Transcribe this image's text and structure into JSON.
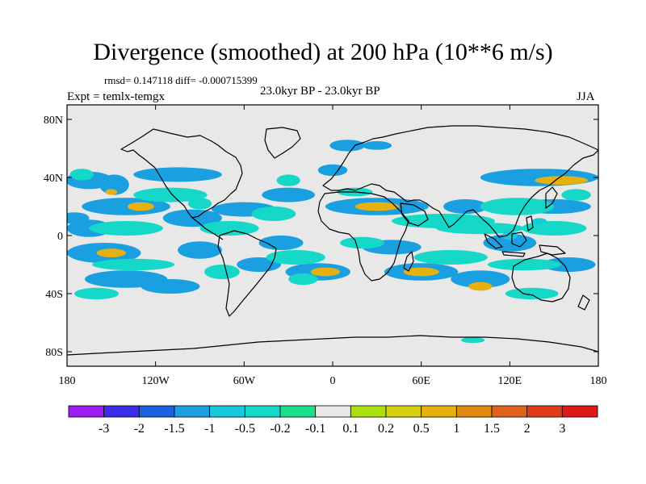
{
  "chart_data": {
    "type": "heatmap",
    "title": "Divergence (smoothed) at 200 hPa (10**6 m/s)",
    "stats_text": "rmsd= 0.147118  diff= -0.000715399",
    "subtitle": "23.0kyr BP - 23.0kyr BP",
    "left_label": "Expt = temlx-temgx",
    "right_label": "JJA",
    "projection": "cylindrical equidistant, coastlines overlaid",
    "xlim": [
      -180,
      180
    ],
    "ylim": [
      -90,
      90
    ],
    "x_ticks": [
      {
        "value": -180,
        "label": "180"
      },
      {
        "value": -120,
        "label": "120W"
      },
      {
        "value": -60,
        "label": "60W"
      },
      {
        "value": 0,
        "label": "0"
      },
      {
        "value": 60,
        "label": "60E"
      },
      {
        "value": 120,
        "label": "120E"
      },
      {
        "value": 180,
        "label": "180"
      }
    ],
    "y_ticks": [
      {
        "value": 80,
        "label": "80N"
      },
      {
        "value": 40,
        "label": "40N"
      },
      {
        "value": 0,
        "label": "0"
      },
      {
        "value": -40,
        "label": "40S"
      },
      {
        "value": -80,
        "label": "80S"
      }
    ],
    "background_color": "#e8e8e8",
    "colorbar": {
      "tick_labels": [
        "-3",
        "-2",
        "-1.5",
        "-1",
        "-0.5",
        "-0.2",
        "-0.1",
        "0.1",
        "0.2",
        "0.5",
        "1",
        "1.5",
        "2",
        "3"
      ],
      "colors": [
        "#9a1ff0",
        "#3a2ee8",
        "#1a60e0",
        "#1aa0e0",
        "#18c8dc",
        "#16d8c8",
        "#1ae08c",
        "#e8e8e8",
        "#a8e010",
        "#d6d010",
        "#e6b010",
        "#e08a12",
        "#e0621a",
        "#e03a1a",
        "#e01818"
      ]
    },
    "features": [
      {
        "lon": -165,
        "lat": 38,
        "level": 3,
        "rx": 16,
        "ry": 6
      },
      {
        "lon": -148,
        "lat": 35,
        "level": 3,
        "rx": 10,
        "ry": 7
      },
      {
        "lon": -150,
        "lat": 30,
        "level": 10,
        "rx": 4,
        "ry": 2
      },
      {
        "lon": -105,
        "lat": 42,
        "level": 3,
        "rx": 30,
        "ry": 5
      },
      {
        "lon": -140,
        "lat": 20,
        "level": 3,
        "rx": 30,
        "ry": 6
      },
      {
        "lon": -130,
        "lat": 20,
        "level": 10,
        "rx": 9,
        "ry": 3
      },
      {
        "lon": -175,
        "lat": 12,
        "level": 3,
        "rx": 10,
        "ry": 4
      },
      {
        "lon": -165,
        "lat": 5,
        "level": 3,
        "rx": 15,
        "ry": 6
      },
      {
        "lon": -155,
        "lat": -12,
        "level": 3,
        "rx": 25,
        "ry": 7
      },
      {
        "lon": -150,
        "lat": -12,
        "level": 10,
        "rx": 10,
        "ry": 3
      },
      {
        "lon": -140,
        "lat": -30,
        "level": 3,
        "rx": 28,
        "ry": 6
      },
      {
        "lon": -110,
        "lat": -35,
        "level": 3,
        "rx": 20,
        "ry": 5
      },
      {
        "lon": -90,
        "lat": -10,
        "level": 3,
        "rx": 15,
        "ry": 6
      },
      {
        "lon": -95,
        "lat": 12,
        "level": 3,
        "rx": 20,
        "ry": 6
      },
      {
        "lon": -60,
        "lat": 18,
        "level": 3,
        "rx": 22,
        "ry": 5
      },
      {
        "lon": -30,
        "lat": 28,
        "level": 3,
        "rx": 18,
        "ry": 5
      },
      {
        "lon": -35,
        "lat": -5,
        "level": 3,
        "rx": 15,
        "ry": 5
      },
      {
        "lon": -50,
        "lat": -20,
        "level": 3,
        "rx": 15,
        "ry": 5
      },
      {
        "lon": -10,
        "lat": -25,
        "level": 3,
        "rx": 22,
        "ry": 6
      },
      {
        "lon": -5,
        "lat": -25,
        "level": 10,
        "rx": 10,
        "ry": 3
      },
      {
        "lon": 30,
        "lat": 20,
        "level": 3,
        "rx": 35,
        "ry": 6
      },
      {
        "lon": 30,
        "lat": 20,
        "level": 10,
        "rx": 15,
        "ry": 3
      },
      {
        "lon": 10,
        "lat": 62,
        "level": 3,
        "rx": 12,
        "ry": 4
      },
      {
        "lon": 30,
        "lat": 62,
        "level": 3,
        "rx": 10,
        "ry": 3
      },
      {
        "lon": 0,
        "lat": 45,
        "level": 3,
        "rx": 10,
        "ry": 4
      },
      {
        "lon": 40,
        "lat": -8,
        "level": 3,
        "rx": 20,
        "ry": 5
      },
      {
        "lon": 60,
        "lat": -25,
        "level": 3,
        "rx": 25,
        "ry": 6
      },
      {
        "lon": 60,
        "lat": -25,
        "level": 10,
        "rx": 12,
        "ry": 3
      },
      {
        "lon": 100,
        "lat": -30,
        "level": 3,
        "rx": 20,
        "ry": 6
      },
      {
        "lon": 100,
        "lat": -35,
        "level": 10,
        "rx": 8,
        "ry": 3
      },
      {
        "lon": 120,
        "lat": -5,
        "level": 3,
        "rx": 18,
        "ry": 6
      },
      {
        "lon": 140,
        "lat": 40,
        "level": 3,
        "rx": 40,
        "ry": 6
      },
      {
        "lon": 155,
        "lat": 38,
        "level": 10,
        "rx": 18,
        "ry": 3
      },
      {
        "lon": 150,
        "lat": 20,
        "level": 3,
        "rx": 25,
        "ry": 5
      },
      {
        "lon": 160,
        "lat": -20,
        "level": 3,
        "rx": 18,
        "ry": 5
      },
      {
        "lon": 90,
        "lat": 20,
        "level": 3,
        "rx": 15,
        "ry": 5
      },
      {
        "lon": 95,
        "lat": -72,
        "level": 5,
        "rx": 8,
        "ry": 2
      },
      {
        "lon": -170,
        "lat": 42,
        "level": 5,
        "rx": 8,
        "ry": 4
      },
      {
        "lon": -140,
        "lat": 5,
        "level": 5,
        "rx": 25,
        "ry": 5
      },
      {
        "lon": -135,
        "lat": -20,
        "level": 5,
        "rx": 28,
        "ry": 4
      },
      {
        "lon": -160,
        "lat": -40,
        "level": 5,
        "rx": 15,
        "ry": 4
      },
      {
        "lon": -110,
        "lat": 28,
        "level": 5,
        "rx": 25,
        "ry": 5
      },
      {
        "lon": -90,
        "lat": 22,
        "level": 5,
        "rx": 8,
        "ry": 4
      },
      {
        "lon": -70,
        "lat": 5,
        "level": 5,
        "rx": 20,
        "ry": 5
      },
      {
        "lon": -40,
        "lat": 15,
        "level": 5,
        "rx": 15,
        "ry": 5
      },
      {
        "lon": -25,
        "lat": -15,
        "level": 5,
        "rx": 20,
        "ry": 5
      },
      {
        "lon": -20,
        "lat": -30,
        "level": 5,
        "rx": 10,
        "ry": 4
      },
      {
        "lon": -75,
        "lat": -25,
        "level": 5,
        "rx": 12,
        "ry": 5
      },
      {
        "lon": -30,
        "lat": 38,
        "level": 5,
        "rx": 8,
        "ry": 4
      },
      {
        "lon": 15,
        "lat": 30,
        "level": 5,
        "rx": 12,
        "ry": 3
      },
      {
        "lon": 20,
        "lat": -5,
        "level": 5,
        "rx": 15,
        "ry": 4
      },
      {
        "lon": 75,
        "lat": 10,
        "level": 5,
        "rx": 35,
        "ry": 5
      },
      {
        "lon": 100,
        "lat": 5,
        "level": 5,
        "rx": 30,
        "ry": 4
      },
      {
        "lon": 80,
        "lat": -15,
        "level": 5,
        "rx": 25,
        "ry": 5
      },
      {
        "lon": 125,
        "lat": 20,
        "level": 5,
        "rx": 25,
        "ry": 6
      },
      {
        "lon": 150,
        "lat": 5,
        "level": 5,
        "rx": 22,
        "ry": 5
      },
      {
        "lon": 130,
        "lat": -20,
        "level": 5,
        "rx": 25,
        "ry": 4
      },
      {
        "lon": 135,
        "lat": -40,
        "level": 5,
        "rx": 18,
        "ry": 4
      },
      {
        "lon": 165,
        "lat": 28,
        "level": 5,
        "rx": 10,
        "ry": 4
      },
      {
        "lon": 120,
        "lat": 0,
        "level": 4,
        "rx": 5,
        "ry": 3
      },
      {
        "lon": 140,
        "lat": 10,
        "level": 4,
        "rx": 5,
        "ry": 2
      }
    ]
  }
}
